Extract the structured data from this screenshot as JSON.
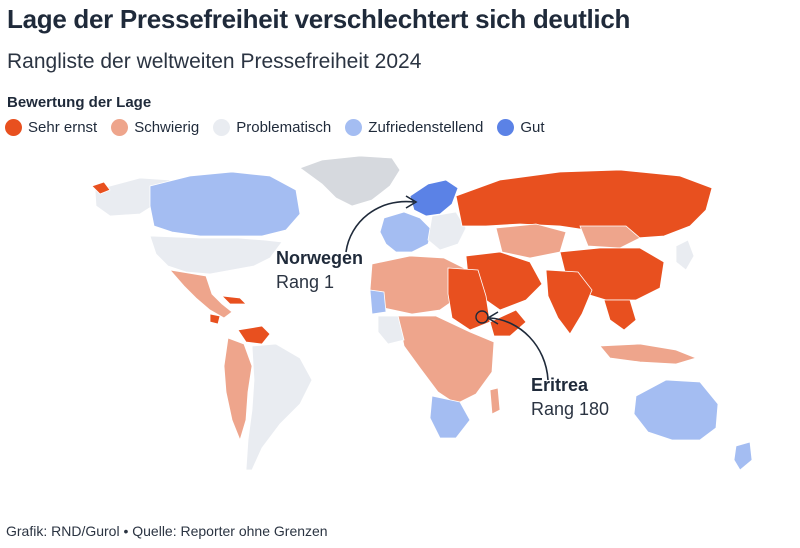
{
  "title": "Lage der Pressefreiheit verschlechtert sich deutlich",
  "subtitle": "Rangliste der weltweiten Pressefreiheit 2024",
  "legend": {
    "title": "Bewertung der Lage",
    "items": [
      {
        "label": "Sehr ernst",
        "color": "#e8501f"
      },
      {
        "label": "Schwierig",
        "color": "#eea58c"
      },
      {
        "label": "Problematisch",
        "color": "#e9ecf1"
      },
      {
        "label": "Zufriedenstellend",
        "color": "#a4bdf2"
      },
      {
        "label": "Gut",
        "color": "#5b82e6"
      }
    ]
  },
  "colors": {
    "sehr_ernst": "#e8501f",
    "schwierig": "#eea58c",
    "problematisch": "#e9ecf1",
    "zufriedenstellend": "#a4bdf2",
    "gut": "#5b82e6",
    "no_data": "#d6d9de",
    "text": "#1f2a3a"
  },
  "callouts": [
    {
      "name": "Norwegen",
      "rank": "Rang 1"
    },
    {
      "name": "Eritrea",
      "rank": "Rang 180"
    }
  ],
  "footer": "Grafik: RND/Gurol • Quelle: Reporter ohne Grenzen"
}
